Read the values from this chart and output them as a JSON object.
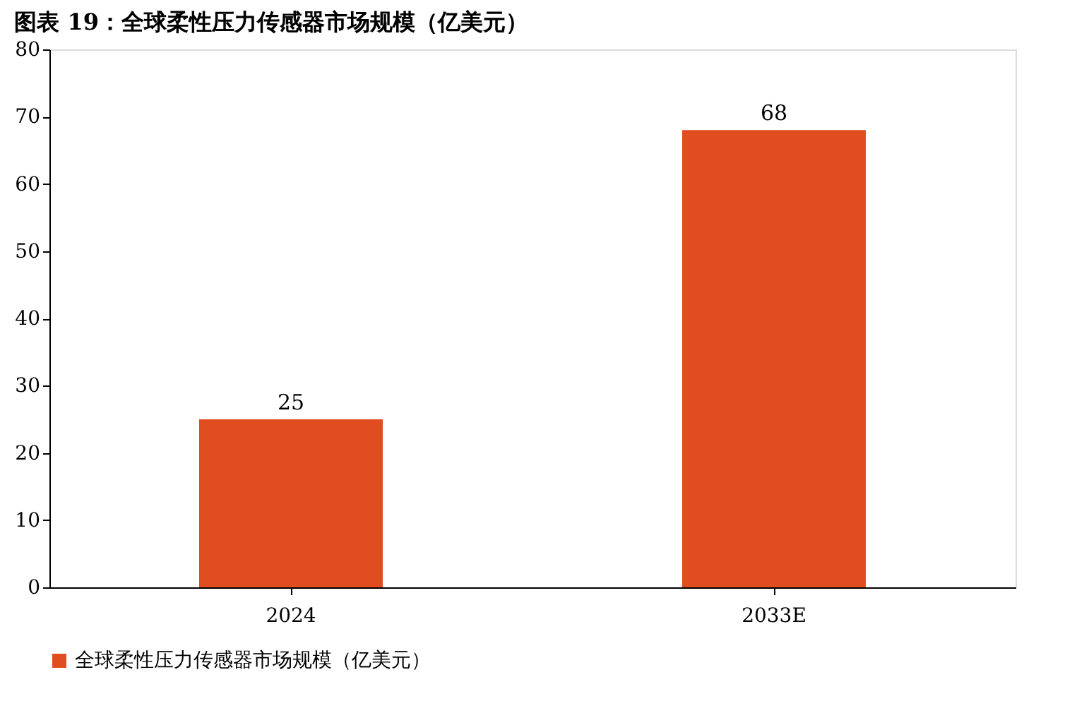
{
  "chart_data": {
    "type": "bar",
    "title": "图表 19：全球柔性压力传感器市场规模（亿美元）",
    "categories": [
      "2024",
      "2033E"
    ],
    "series": [
      {
        "name": "全球柔性压力传感器市场规模（亿美元）",
        "color": "#e04e1f",
        "values": [
          25,
          68
        ]
      }
    ],
    "ylim": [
      0,
      80
    ],
    "yticks": [
      0,
      10,
      20,
      30,
      40,
      50,
      60,
      70,
      80
    ],
    "grid": false,
    "legend": "bottom",
    "data_labels": true
  }
}
